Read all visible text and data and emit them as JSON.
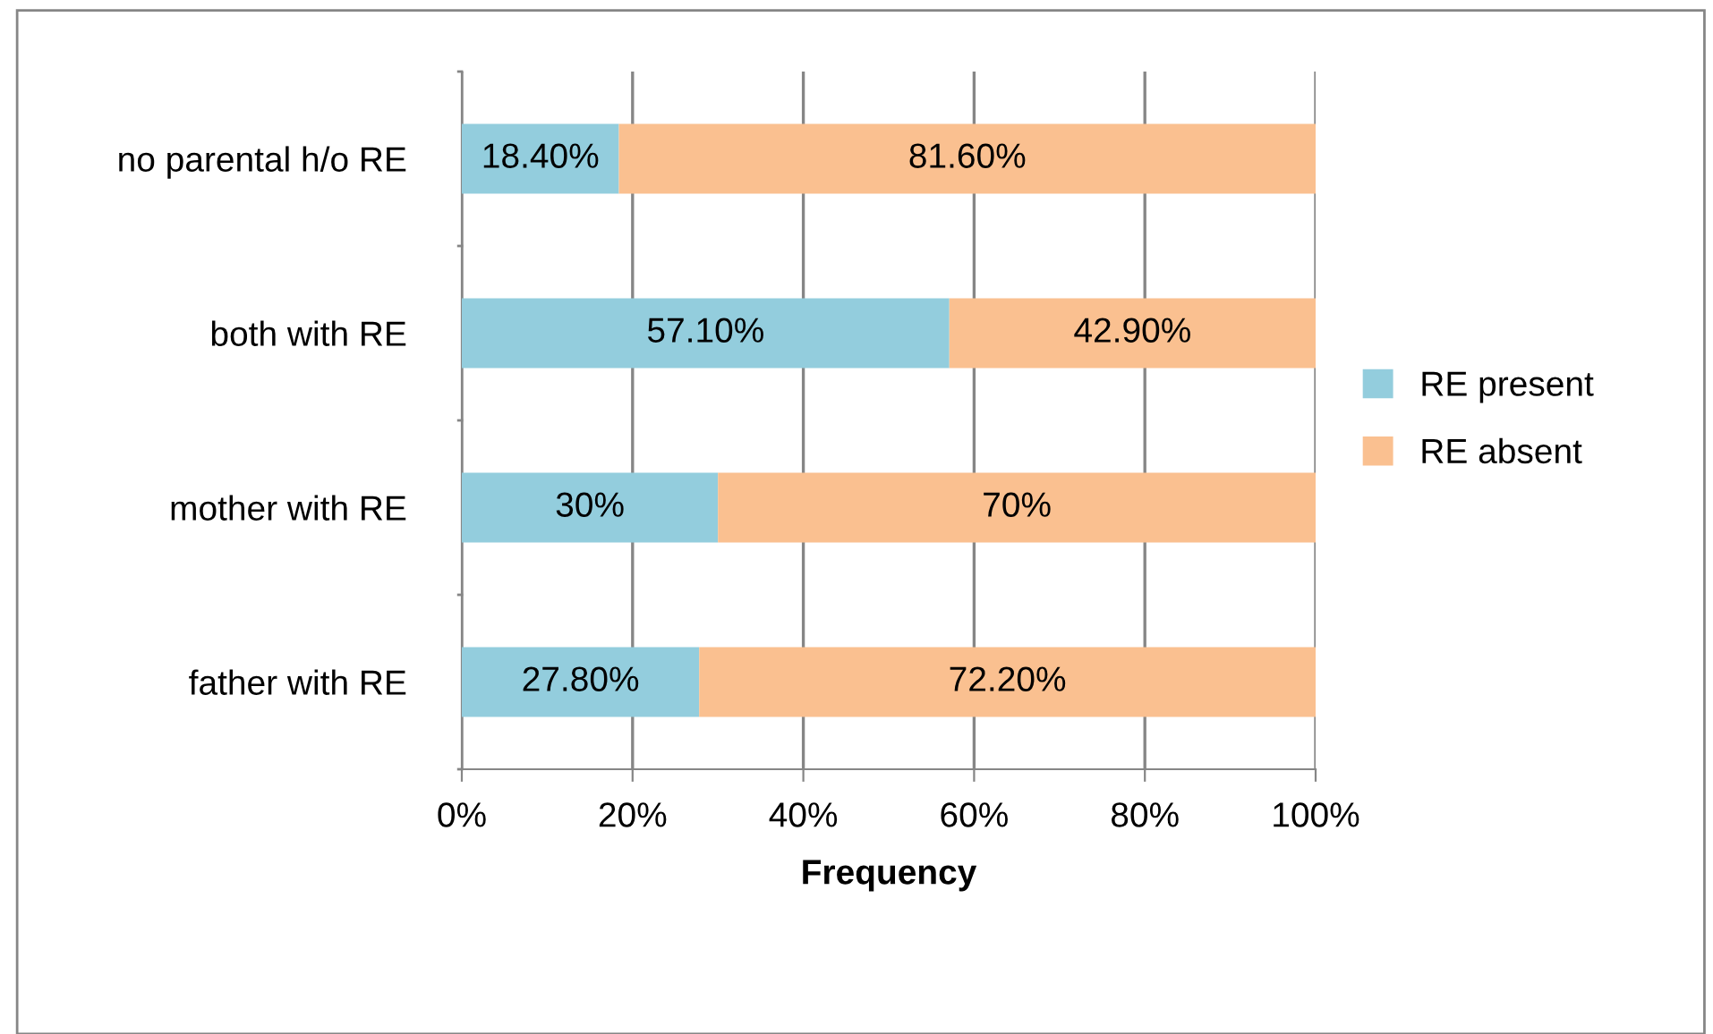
{
  "chart_data": {
    "type": "bar",
    "orientation": "horizontal",
    "stacked": true,
    "xlabel": "Frequency",
    "categories": [
      "no parental h/o RE",
      "both with RE",
      "mother with RE",
      "father with RE"
    ],
    "series": [
      {
        "name": "RE present",
        "color": "#93cddd",
        "values": [
          18.4,
          57.1,
          30,
          27.8
        ],
        "value_labels": [
          "18.40%",
          "57.10%",
          "30%",
          "27.80%"
        ]
      },
      {
        "name": "RE absent",
        "color": "#fac090",
        "values": [
          81.6,
          42.9,
          70,
          72.2
        ],
        "value_labels": [
          "81.60%",
          "42.90%",
          "70%",
          "72.20%"
        ]
      }
    ],
    "xlim": [
      0,
      100
    ],
    "xticks": [
      {
        "value": 0,
        "label": "0%"
      },
      {
        "value": 20,
        "label": "20%"
      },
      {
        "value": 40,
        "label": "40%"
      },
      {
        "value": 60,
        "label": "60%"
      },
      {
        "value": 80,
        "label": "80%"
      },
      {
        "value": 100,
        "label": "100%"
      }
    ],
    "grid": "x",
    "legend": "right"
  }
}
